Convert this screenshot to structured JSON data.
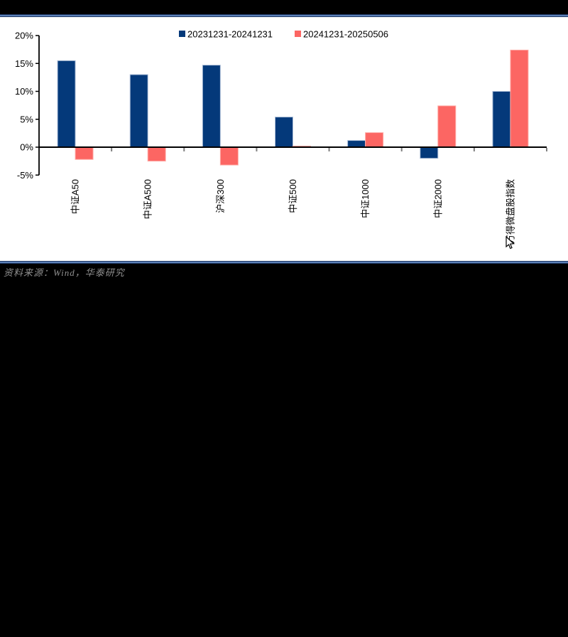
{
  "page": {
    "background": "#000000",
    "panel_background": "#ffffff",
    "rule_color": "#5b80b7",
    "source_note": "资料来源：Wind，华泰研究",
    "source_note_color": "#8f8f8f"
  },
  "chart_data": {
    "type": "bar",
    "title": "",
    "xlabel": "",
    "ylabel": "",
    "categories": [
      "中证A50",
      "中证A500",
      "沪深300",
      "中证500",
      "中证1000",
      "中证2000",
      "万得微盘股指数"
    ],
    "series": [
      {
        "name": "20231231-20241231",
        "color": "#04397a",
        "edge_color": "#aebfd8",
        "values": [
          15.5,
          13.0,
          14.7,
          5.4,
          1.2,
          -2.0,
          10.0
        ]
      },
      {
        "name": "20241231-20250506",
        "color": "#fc6663",
        "edge_color": "#ffaba6",
        "values": [
          -2.2,
          -2.5,
          -3.2,
          0.2,
          2.6,
          7.4,
          17.4
        ]
      }
    ],
    "y_ticks": [
      20,
      15,
      10,
      5,
      0,
      -5
    ],
    "y_tick_suffix": "%",
    "ylim": [
      -5,
      20
    ],
    "grid": false,
    "legend_position": "top",
    "axis_color": "#000000",
    "x_tick_color": "#808080",
    "label_color": "#000000"
  }
}
